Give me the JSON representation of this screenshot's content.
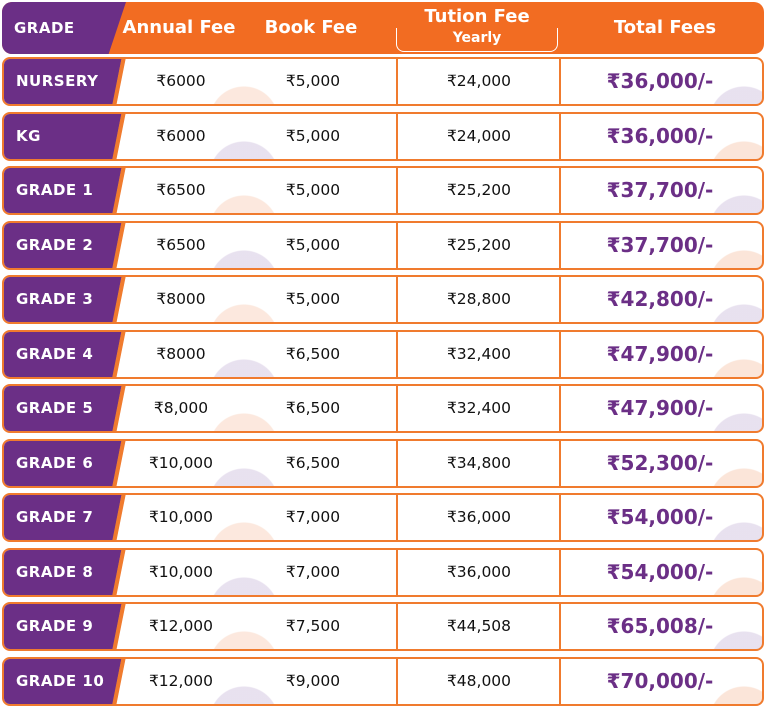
{
  "header": {
    "grade": "GRADE",
    "annual_fee": "Annual Fee",
    "book_fee": "Book Fee",
    "tuition_fee": "Tution Fee",
    "tuition_sub": "Yearly",
    "total_fees": "Total Fees"
  },
  "rows": [
    [
      "NURSERY",
      "₹6000",
      "₹5,000",
      "₹24,000",
      "₹36,000/-"
    ],
    [
      "KG",
      "₹6000",
      "₹5,000",
      "₹24,000",
      "₹36,000/-"
    ],
    [
      "GRADE 1",
      "₹6500",
      "₹5,000",
      "₹25,200",
      "₹37,700/-"
    ],
    [
      "GRADE 2",
      "₹6500",
      "₹5,000",
      "₹25,200",
      "₹37,700/-"
    ],
    [
      "GRADE 3",
      "₹8000",
      "₹5,000",
      "₹28,800",
      "₹42,800/-"
    ],
    [
      "GRADE 4",
      "₹8000",
      "₹6,500",
      "₹32,400",
      "₹47,900/-"
    ],
    [
      "GRADE 5",
      "₹8,000",
      "₹6,500",
      "₹32,400",
      "₹47,900/-"
    ],
    [
      "GRADE 6",
      "₹10,000",
      "₹6,500",
      "₹34,800",
      "₹52,300/-"
    ],
    [
      "GRADE 7",
      "₹10,000",
      "₹7,000",
      "₹36,000",
      "₹54,000/-"
    ],
    [
      "GRADE 8",
      "₹10,000",
      "₹7,000",
      "₹36,000",
      "₹54,000/-"
    ],
    [
      "GRADE 9",
      "₹12,000",
      "₹7,500",
      "₹44,508",
      "₹65,008/-"
    ],
    [
      "GRADE 10",
      "₹12,000",
      "₹9,000",
      "₹48,000",
      "₹70,000/-"
    ]
  ]
}
